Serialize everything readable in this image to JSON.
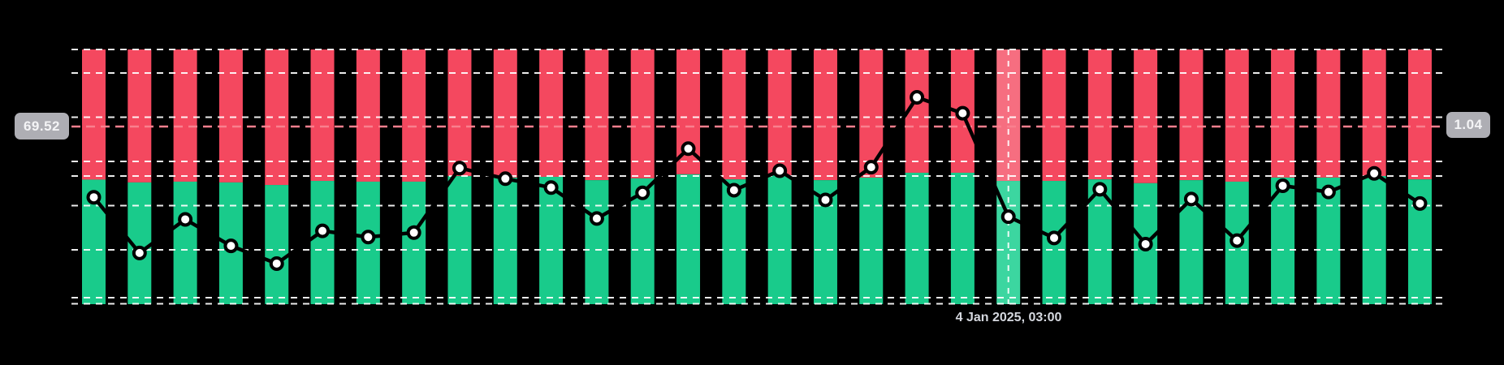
{
  "chart_data": {
    "type": "bar",
    "subtype": "stacked-percent-columns-with-line-overlay",
    "title": "",
    "bars_count": 30,
    "series": [
      {
        "name": "short-percent-top-red",
        "color": "#f4485f",
        "values": [
          51.1,
          52.2,
          51.9,
          52.2,
          53.2,
          51.6,
          51.9,
          51.9,
          49.7,
          50.3,
          50.0,
          51.3,
          50.6,
          49.0,
          51.0,
          49.4,
          51.3,
          50.3,
          48.4,
          48.4,
          51.6,
          51.6,
          51.0,
          52.5,
          51.3,
          51.9,
          50.3,
          50.3,
          49.7,
          51.0
        ]
      },
      {
        "name": "long-percent-bottom-green",
        "color": "#19cb8b",
        "values": [
          48.9,
          47.8,
          48.1,
          47.8,
          46.8,
          48.4,
          48.1,
          48.1,
          50.3,
          49.7,
          50.0,
          48.7,
          49.4,
          51.0,
          49.0,
          50.6,
          48.7,
          49.7,
          51.6,
          51.6,
          48.4,
          48.4,
          49.0,
          47.5,
          48.7,
          48.1,
          49.7,
          49.7,
          50.3,
          49.0
        ]
      },
      {
        "name": "ratio-line",
        "line_color": "#000000",
        "marker_fill": "#ffffff",
        "marker_stroke": "#000000",
        "values": [
          0.96,
          0.897,
          0.935,
          0.905,
          0.885,
          0.922,
          0.915,
          0.92,
          0.993,
          0.981,
          0.971,
          0.936,
          0.965,
          1.015,
          0.968,
          0.99,
          0.957,
          0.994,
          1.073,
          1.055,
          0.938,
          0.914,
          0.969,
          0.907,
          0.958,
          0.911,
          0.973,
          0.966,
          0.987,
          0.953
        ]
      }
    ],
    "left_axis": {
      "scale": "percent",
      "min": 0,
      "max": 100
    },
    "right_axis": {
      "scale": "ratio"
    },
    "grid": true,
    "legend_position": "none",
    "crosshair": {
      "bar_index": 21,
      "left_value": "69.52",
      "right_value": "1.04",
      "time_label": "4 Jan 2025, 03:00"
    }
  },
  "labels": {
    "left_value": "69.52",
    "right_value": "1.04",
    "time": "4 Jan 2025, 03:00"
  },
  "colors": {
    "background": "#000000",
    "bar_red": "#f4485f",
    "bar_green": "#19cb8b",
    "bar_red_highlight": "#f66e80",
    "bar_green_highlight": "#3cd6a0",
    "gridline": "#ffffff",
    "crosshair_horizontal": "#f9808e",
    "crosshair_vertical": "#ffffff",
    "line": "#000000",
    "marker_fill": "#ffffff",
    "label_background": "#aeaeb4",
    "label_text": "#f4f4f6",
    "time_text": "#d5d8df"
  }
}
